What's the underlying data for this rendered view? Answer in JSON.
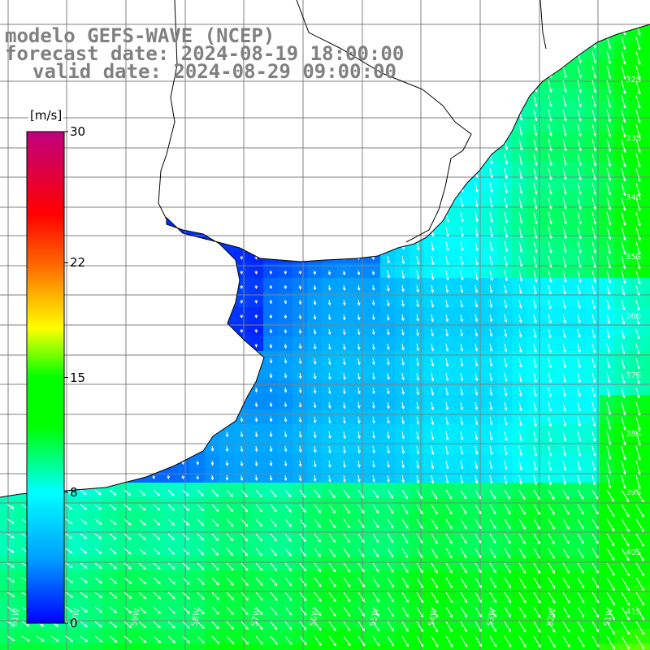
{
  "title": {
    "line1": "modelo GEFS-WAVE (NCEP)",
    "line2": "forecast date: 2024-08-19 18:00:00",
    "line3": "valid date: 2024-08-29 09:00:00"
  },
  "colorbar": {
    "unit": "[m/s]",
    "ticks": [
      {
        "value": 30,
        "label": "30"
      },
      {
        "value": 22,
        "label": "22"
      },
      {
        "value": 15,
        "label": "15"
      },
      {
        "value": 8,
        "label": "8"
      },
      {
        "value": 0,
        "label": "0"
      }
    ],
    "colors": [
      "#0000ff",
      "#00a0ff",
      "#00ffff",
      "#00ff00",
      "#ffff00",
      "#ff8000",
      "#ff0000",
      "#c0007f"
    ]
  },
  "map": {
    "lat_labels": [
      "32S",
      "33S",
      "34S",
      "35S",
      "36S",
      "37S",
      "38S",
      "39S",
      "40S",
      "41S"
    ],
    "lon_labels": [
      "61W",
      "60W",
      "59W",
      "58W",
      "57W",
      "56W",
      "55W",
      "54W",
      "53W",
      "52W",
      "51W"
    ],
    "land_color": "#ffffff",
    "grid_color": "#808080",
    "arrow_color": "#ffffff"
  }
}
